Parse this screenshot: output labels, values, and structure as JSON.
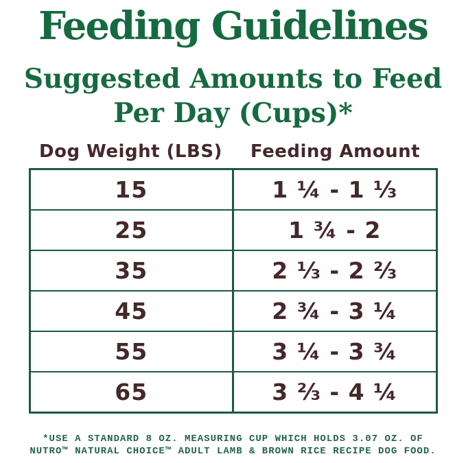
{
  "title": "Feeding Guidelines",
  "subtitle": {
    "line1": "Suggested Amounts to Feed",
    "line2": "Per Day (Cups)*"
  },
  "table": {
    "headers": {
      "weight": "Dog Weight (LBS)",
      "amount": "Feeding Amount"
    },
    "rows": [
      {
        "weight": "15",
        "amount": "1 ¼ - 1 ⅓"
      },
      {
        "weight": "25",
        "amount": "1 ¾ - 2"
      },
      {
        "weight": "35",
        "amount": "2 ⅓ - 2 ⅔"
      },
      {
        "weight": "45",
        "amount": "2 ¾ - 3 ¼"
      },
      {
        "weight": "55",
        "amount": "3 ¼ - 3 ¾"
      },
      {
        "weight": "65",
        "amount": "3 ⅔ - 4 ¼"
      }
    ]
  },
  "footnote": {
    "line1": "*USE A STANDARD 8 OZ. MEASURING CUP WHICH HOLDS 3.07 OZ. OF",
    "line2": "NUTRO™ NATURAL CHOICE™ ADULT LAMB & BROWN RICE RECIPE DOG FOOD."
  },
  "colors": {
    "heading_green": "#166a40",
    "table_border_green": "#1c5a40",
    "text_brown": "#45282b",
    "footnote_green": "#256349",
    "background": "#ffffff"
  },
  "chart_data": {
    "type": "table",
    "title": "Suggested Amounts to Feed Per Day (Cups)",
    "columns": [
      "Dog Weight (LBS)",
      "Feeding Amount (cups)"
    ],
    "rows": [
      {
        "weight_lbs": 15,
        "cups_min": 1.25,
        "cups_max": 1.333,
        "display": "1 ¼ - 1 ⅓"
      },
      {
        "weight_lbs": 25,
        "cups_min": 1.75,
        "cups_max": 2.0,
        "display": "1 ¾ - 2"
      },
      {
        "weight_lbs": 35,
        "cups_min": 2.333,
        "cups_max": 2.667,
        "display": "2 ⅓ - 2 ⅔"
      },
      {
        "weight_lbs": 45,
        "cups_min": 2.75,
        "cups_max": 3.25,
        "display": "2 ¾ - 3 ¼"
      },
      {
        "weight_lbs": 55,
        "cups_min": 3.25,
        "cups_max": 3.75,
        "display": "3 ¼ - 3 ¾"
      },
      {
        "weight_lbs": 65,
        "cups_min": 3.667,
        "cups_max": 4.25,
        "display": "3 ⅔ - 4 ¼"
      }
    ]
  }
}
